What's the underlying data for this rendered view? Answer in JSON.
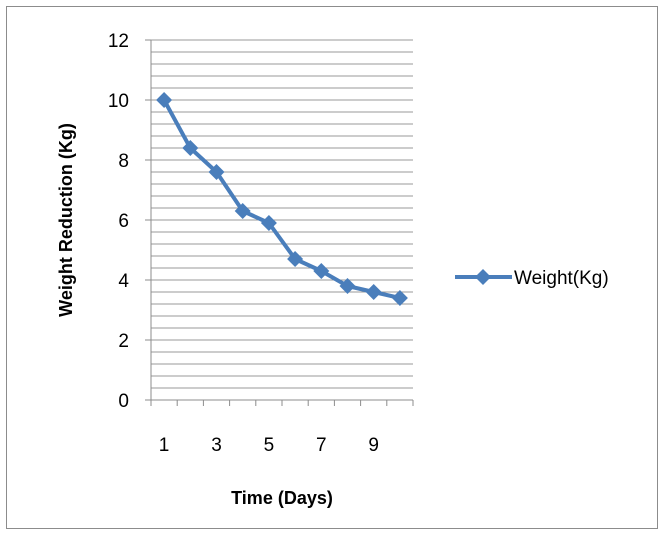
{
  "chart_data": {
    "type": "line",
    "title": "",
    "xlabel": "Time (Days)",
    "ylabel": "Weight Reduction (Kg)",
    "x": [
      1,
      2,
      3,
      4,
      5,
      6,
      7,
      8,
      9,
      10
    ],
    "x_tick_labels": [
      "1",
      "3",
      "5",
      "7",
      "9"
    ],
    "ylim": [
      0,
      12
    ],
    "y_ticks": [
      "0",
      "2",
      "4",
      "6",
      "8",
      "10",
      "12"
    ],
    "grid": "horizontal minor gridlines every 0.4",
    "legend_position": "right",
    "series": [
      {
        "name": "Weight(Kg)",
        "color": "#4a7ebb",
        "marker": "diamond",
        "values": [
          10.0,
          8.4,
          7.6,
          6.3,
          5.9,
          4.7,
          4.3,
          3.8,
          3.6,
          3.4
        ]
      }
    ]
  }
}
